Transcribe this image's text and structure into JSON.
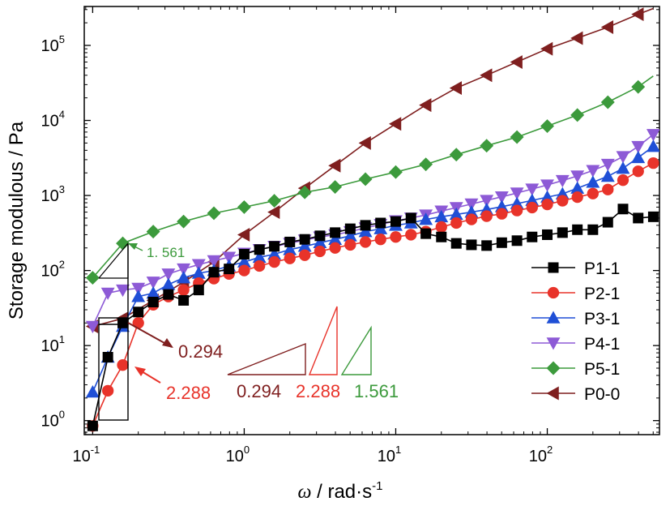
{
  "chart_data": {
    "type": "line",
    "xscale": "log",
    "yscale": "log",
    "xlim": [
      0.088,
      550
    ],
    "ylim": [
      0.65,
      330000
    ],
    "xticks": [
      {
        "value": 0.1,
        "base": "10",
        "exp": "-1"
      },
      {
        "value": 1,
        "base": "10",
        "exp": "0"
      },
      {
        "value": 10,
        "base": "10",
        "exp": "1"
      },
      {
        "value": 100,
        "base": "10",
        "exp": "2"
      }
    ],
    "yticks": [
      {
        "value": 1,
        "base": "10",
        "exp": "0"
      },
      {
        "value": 10,
        "base": "10",
        "exp": "1"
      },
      {
        "value": 100,
        "base": "10",
        "exp": "2"
      },
      {
        "value": 1000,
        "base": "10",
        "exp": "3"
      },
      {
        "value": 10000,
        "base": "10",
        "exp": "4"
      },
      {
        "value": 100000,
        "base": "10",
        "exp": "5"
      }
    ],
    "xlabel": {
      "symbol": "ω",
      "rest": " / rad·s",
      "exp": "-1"
    },
    "ylabel": "Storage modulous / Pa",
    "legend_position": "lower-right",
    "series": [
      {
        "name": "P1-1",
        "color": "#000000",
        "marker": "square",
        "x": [
          0.1,
          0.126,
          0.158,
          0.2,
          0.251,
          0.316,
          0.398,
          0.501,
          0.631,
          0.794,
          1.0,
          1.26,
          1.58,
          2.0,
          2.51,
          3.16,
          3.98,
          5.01,
          6.31,
          7.94,
          10.0,
          12.6,
          15.8,
          20.0,
          25.1,
          31.6,
          39.8,
          50.1,
          63.1,
          79.4,
          100,
          126,
          158,
          200,
          251,
          316,
          398,
          501
        ],
        "y": [
          0.85,
          7.0,
          20,
          28,
          38,
          48,
          40,
          55,
          95,
          105,
          165,
          190,
          210,
          240,
          260,
          290,
          320,
          360,
          400,
          430,
          450,
          500,
          310,
          280,
          230,
          220,
          215,
          235,
          250,
          280,
          300,
          320,
          350,
          350,
          440,
          660,
          500,
          520
        ]
      },
      {
        "name": "P2-1",
        "color": "#e8332a",
        "marker": "circle",
        "x": [
          0.1,
          0.126,
          0.158,
          0.2,
          0.251,
          0.316,
          0.398,
          0.501,
          0.631,
          0.794,
          1.0,
          1.26,
          1.58,
          2.0,
          2.51,
          3.16,
          3.98,
          5.01,
          6.31,
          7.94,
          10.0,
          12.6,
          15.8,
          20.0,
          25.1,
          31.6,
          39.8,
          50.1,
          63.1,
          79.4,
          100,
          126,
          158,
          200,
          251,
          316,
          398,
          501
        ],
        "y": [
          0.85,
          2.5,
          5.5,
          20,
          35,
          45,
          55,
          68,
          78,
          90,
          100,
          115,
          130,
          145,
          160,
          180,
          200,
          220,
          240,
          260,
          280,
          300,
          330,
          380,
          430,
          480,
          530,
          570,
          630,
          690,
          760,
          850,
          950,
          1060,
          1200,
          1600,
          2100,
          2700
        ]
      },
      {
        "name": "P3-1",
        "color": "#1f4fd6",
        "marker": "triangle-up",
        "x": [
          0.1,
          0.126,
          0.158,
          0.2,
          0.251,
          0.316,
          0.398,
          0.501,
          0.631,
          0.794,
          1.0,
          1.26,
          1.58,
          2.0,
          2.51,
          3.16,
          3.98,
          5.01,
          6.31,
          7.94,
          10.0,
          12.6,
          15.8,
          20.0,
          25.1,
          31.6,
          39.8,
          50.1,
          63.1,
          79.4,
          100,
          126,
          158,
          200,
          251,
          316,
          398,
          501
        ],
        "y": [
          2.4,
          7.0,
          18,
          45,
          50,
          65,
          80,
          92,
          100,
          115,
          130,
          150,
          165,
          190,
          210,
          235,
          260,
          290,
          330,
          360,
          400,
          430,
          480,
          520,
          560,
          600,
          650,
          710,
          780,
          860,
          950,
          1050,
          1250,
          1500,
          1800,
          2300,
          3200,
          4500
        ]
      },
      {
        "name": "P4-1",
        "color": "#8d5ad6",
        "marker": "triangle-down",
        "x": [
          0.1,
          0.126,
          0.158,
          0.2,
          0.251,
          0.316,
          0.398,
          0.501,
          0.631,
          0.794,
          1.0,
          1.26,
          1.58,
          2.0,
          2.51,
          3.16,
          3.98,
          5.01,
          6.31,
          7.94,
          10.0,
          12.6,
          15.8,
          20.0,
          25.1,
          31.6,
          39.8,
          50.1,
          63.1,
          79.4,
          100,
          126,
          158,
          200,
          251,
          316,
          398,
          501
        ],
        "y": [
          18,
          50,
          55,
          58,
          70,
          90,
          105,
          120,
          135,
          150,
          170,
          190,
          210,
          230,
          255,
          280,
          300,
          330,
          370,
          410,
          460,
          500,
          550,
          620,
          690,
          770,
          860,
          960,
          1080,
          1220,
          1380,
          1580,
          1820,
          2150,
          2600,
          3300,
          4500,
          6500
        ]
      },
      {
        "name": "P5-1",
        "color": "#3c9a3c",
        "marker": "diamond",
        "x": [
          0.1,
          0.158,
          0.251,
          0.398,
          0.631,
          1.0,
          1.58,
          2.51,
          3.98,
          6.31,
          10.0,
          15.8,
          25.1,
          39.8,
          63.1,
          100,
          158,
          251,
          398
        ],
        "y": [
          80,
          230,
          330,
          450,
          580,
          700,
          850,
          1100,
          1300,
          1650,
          2050,
          2600,
          3500,
          4600,
          6000,
          8400,
          11800,
          17500,
          28000
        ]
      },
      {
        "name": "P0-0",
        "color": "#7f1f1f",
        "marker": "triangle-left",
        "x": [
          0.1,
          0.158,
          0.251,
          0.398,
          0.631,
          1.0,
          1.58,
          2.51,
          3.98,
          6.31,
          10.0,
          15.8,
          25.1,
          39.8,
          63.1,
          100,
          158,
          251,
          398
        ],
        "y": [
          18,
          23,
          40,
          70,
          130,
          300,
          600,
          1250,
          2500,
          5000,
          9000,
          16000,
          27000,
          40000,
          60000,
          90000,
          125000,
          175000,
          260000
        ]
      }
    ],
    "slope_annotations": [
      {
        "label": "1. 561",
        "color": "#3c9a3c"
      },
      {
        "label": "0.294",
        "color": "#7f1f1f"
      },
      {
        "label": "2.288",
        "color": "#e8332a"
      }
    ],
    "slope_legend": [
      {
        "label": "0.294",
        "color": "#7f1f1f"
      },
      {
        "label": "2.288",
        "color": "#e8332a"
      },
      {
        "label": "1.561",
        "color": "#3c9a3c"
      }
    ]
  }
}
